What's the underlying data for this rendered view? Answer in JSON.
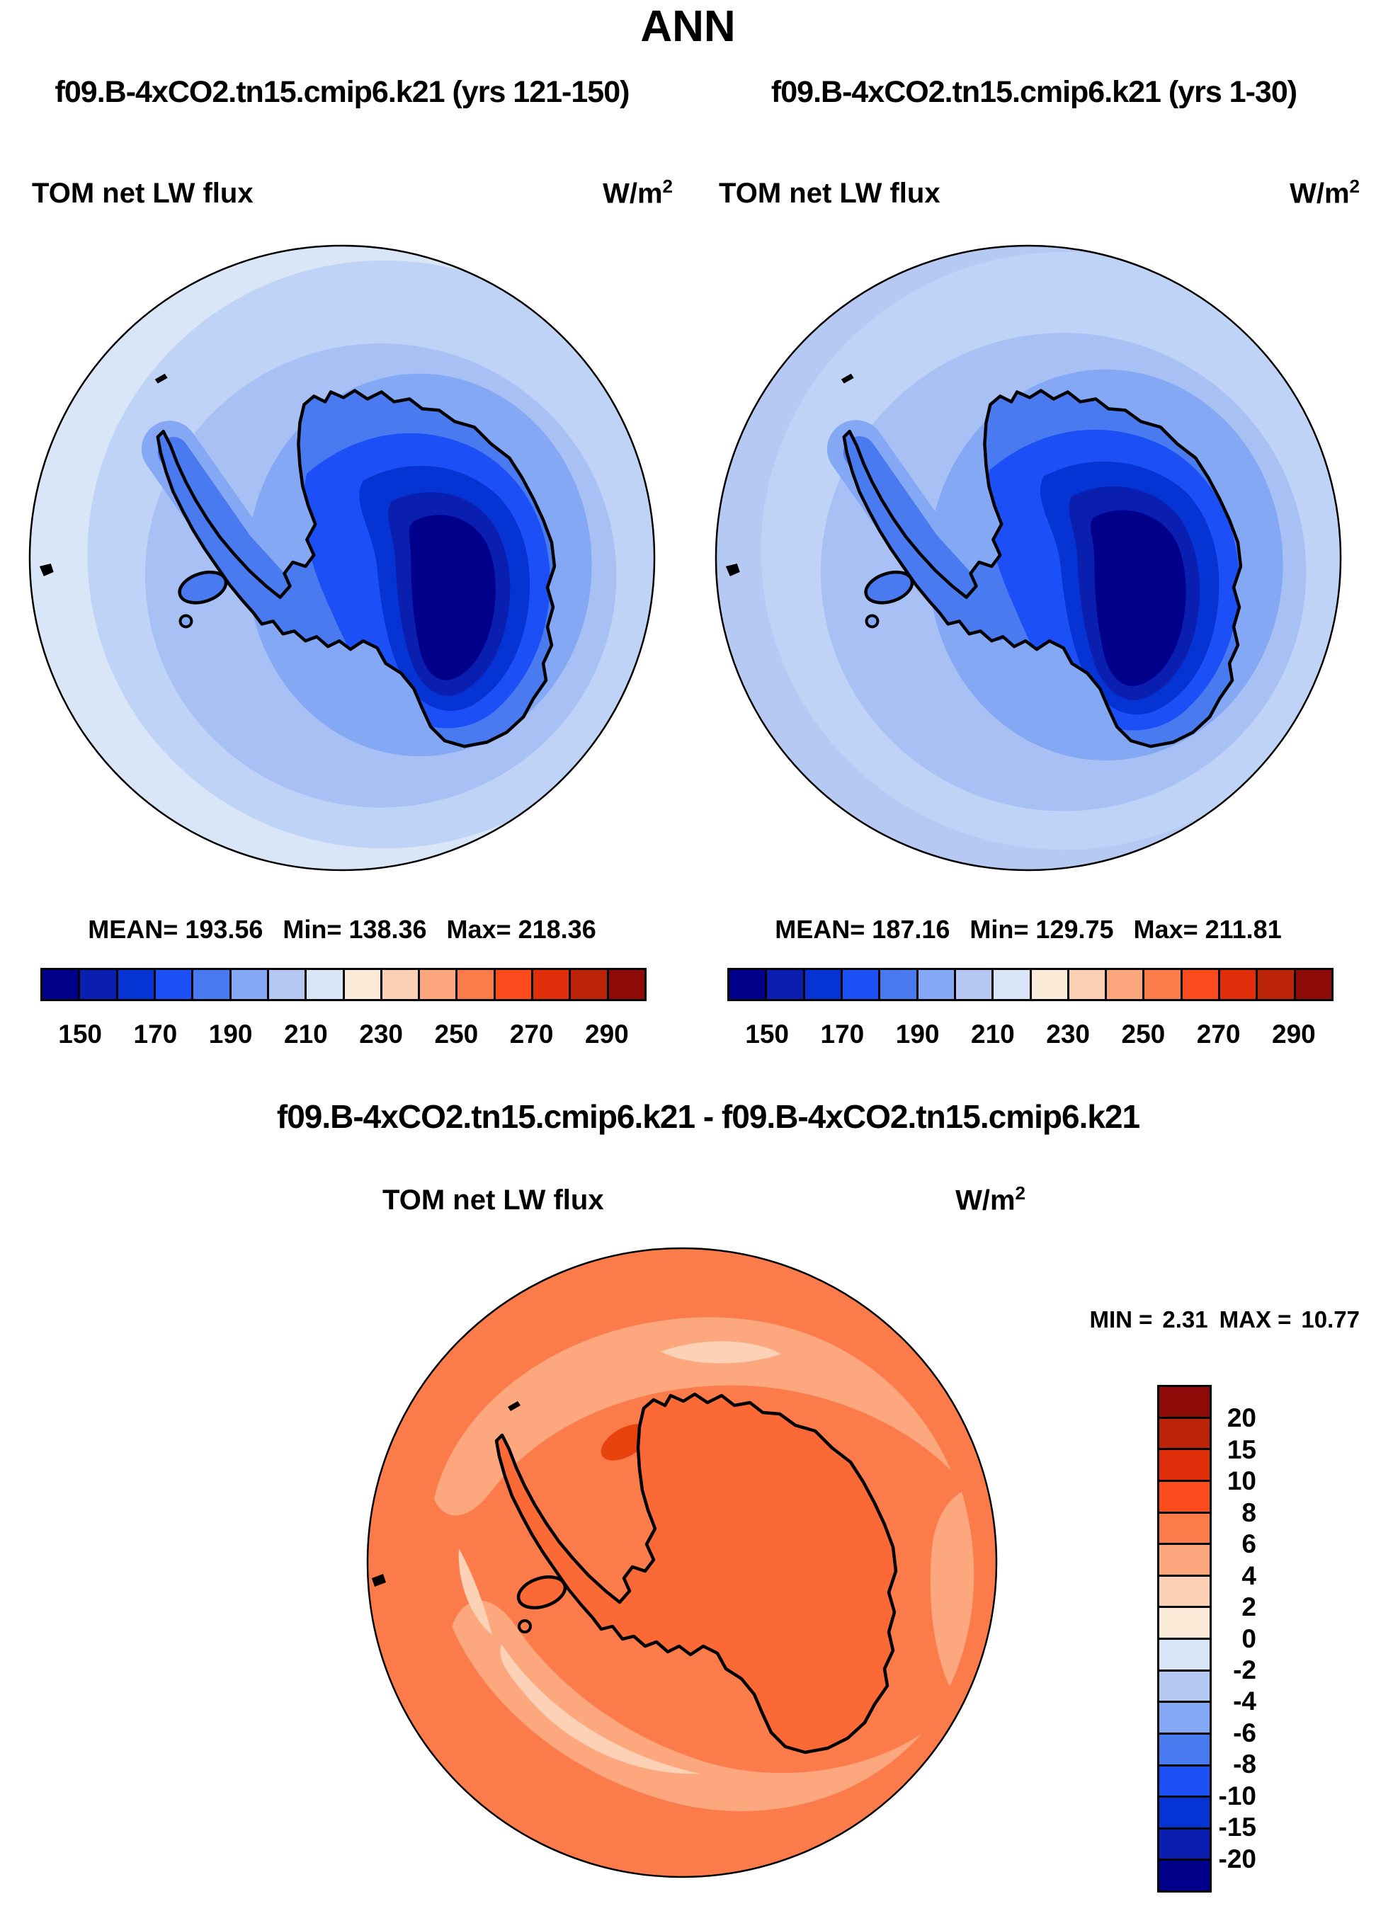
{
  "title": "ANN",
  "panel_left": {
    "subtitle": "f09.B-4xCO2.tn15.cmip6.k21 (yrs 121-150)",
    "var_label": "TOM net LW flux",
    "units_base": "W/m",
    "units_exp": "2",
    "mean_label": "MEAN=",
    "mean": "193.56",
    "min_label": "Min=",
    "min": "138.36",
    "max_label": "Max=",
    "max": "218.36"
  },
  "panel_right": {
    "subtitle": "f09.B-4xCO2.tn15.cmip6.k21 (yrs 1-30)",
    "var_label": "TOM net LW flux",
    "units_base": "W/m",
    "units_exp": "2",
    "mean_label": "MEAN=",
    "mean": "187.16",
    "min_label": "Min=",
    "min": "129.75",
    "max_label": "Max=",
    "max": "211.81"
  },
  "panel_diff": {
    "title": "f09.B-4xCO2.tn15.cmip6.k21 - f09.B-4xCO2.tn15.cmip6.k21",
    "var_label": "TOM net LW flux",
    "units_base": "W/m",
    "units_exp": "2",
    "min_label": "MIN =",
    "min": "2.31",
    "max_label": "MAX =",
    "max": "10.77"
  },
  "colorbar_main": {
    "colors": [
      "#00008B",
      "#0A1EB0",
      "#0633D3",
      "#1C4FF5",
      "#4A7AF0",
      "#85A8F5",
      "#B5C9F3",
      "#D9E6F8",
      "#FDEBD9",
      "#FDD1B5",
      "#FDA77E",
      "#FC7B4A",
      "#FC4B1C",
      "#E02D0A",
      "#BC2409",
      "#8C0A08"
    ],
    "tick_labels": [
      "150",
      "170",
      "190",
      "210",
      "230",
      "250",
      "270",
      "290"
    ]
  },
  "colorbar_diff": {
    "colors": [
      "#8C0A08",
      "#BC2409",
      "#E02D0A",
      "#FC4B1C",
      "#FC7B4A",
      "#FDA77E",
      "#FDD1B5",
      "#FDEBD9",
      "#D9E6F8",
      "#B5C9F3",
      "#85A8F5",
      "#4A7AF0",
      "#1C4FF5",
      "#0633D3",
      "#0A1EB0",
      "#00008B"
    ],
    "tick_labels": [
      "20",
      "15",
      "10",
      "8",
      "6",
      "4",
      "2",
      "0",
      "-2",
      "-4",
      "-6",
      "-8",
      "-10",
      "-15",
      "-20"
    ]
  },
  "palette_extra": {
    "ocean_ring2": "#BFD3F7",
    "ocean_ring3": "#A8C0F3",
    "diff_land": "#FA6936",
    "diff_spot": "#E8420D",
    "coastline": "#000000"
  },
  "chart_data": [
    {
      "type": "heatmap",
      "subtype": "filled-contour-map",
      "projection": "south-polar-stereographic",
      "region": "Antarctica",
      "season": "ANN",
      "title": "f09.B-4xCO2.tn15.cmip6.k21 (yrs 121-150)",
      "variable": "TOM net LW flux",
      "units": "W/m2",
      "stats": {
        "mean": 193.56,
        "min": 138.36,
        "max": 218.36
      },
      "contour_levels": [
        140,
        150,
        160,
        170,
        180,
        190,
        200,
        210,
        220,
        230,
        240,
        250,
        260,
        270,
        280,
        290,
        300
      ],
      "colorbar_tick_labels": [
        150,
        170,
        190,
        210,
        230,
        250,
        270,
        290
      ],
      "legend_position": "bottom"
    },
    {
      "type": "heatmap",
      "subtype": "filled-contour-map",
      "projection": "south-polar-stereographic",
      "region": "Antarctica",
      "season": "ANN",
      "title": "f09.B-4xCO2.tn15.cmip6.k21 (yrs 1-30)",
      "variable": "TOM net LW flux",
      "units": "W/m2",
      "stats": {
        "mean": 187.16,
        "min": 129.75,
        "max": 211.81
      },
      "contour_levels": [
        140,
        150,
        160,
        170,
        180,
        190,
        200,
        210,
        220,
        230,
        240,
        250,
        260,
        270,
        280,
        290,
        300
      ],
      "colorbar_tick_labels": [
        150,
        170,
        190,
        210,
        230,
        250,
        270,
        290
      ],
      "legend_position": "bottom"
    },
    {
      "type": "heatmap",
      "subtype": "filled-contour-map",
      "projection": "south-polar-stereographic",
      "region": "Antarctica",
      "season": "ANN",
      "title": "f09.B-4xCO2.tn15.cmip6.k21 - f09.B-4xCO2.tn15.cmip6.k21",
      "variable": "TOM net LW flux",
      "units": "W/m2",
      "stats": {
        "min": 2.31,
        "max": 10.77
      },
      "contour_levels": [
        -20,
        -15,
        -10,
        -8,
        -6,
        -4,
        -2,
        0,
        2,
        4,
        6,
        8,
        10,
        15,
        20
      ],
      "legend_position": "right"
    }
  ]
}
